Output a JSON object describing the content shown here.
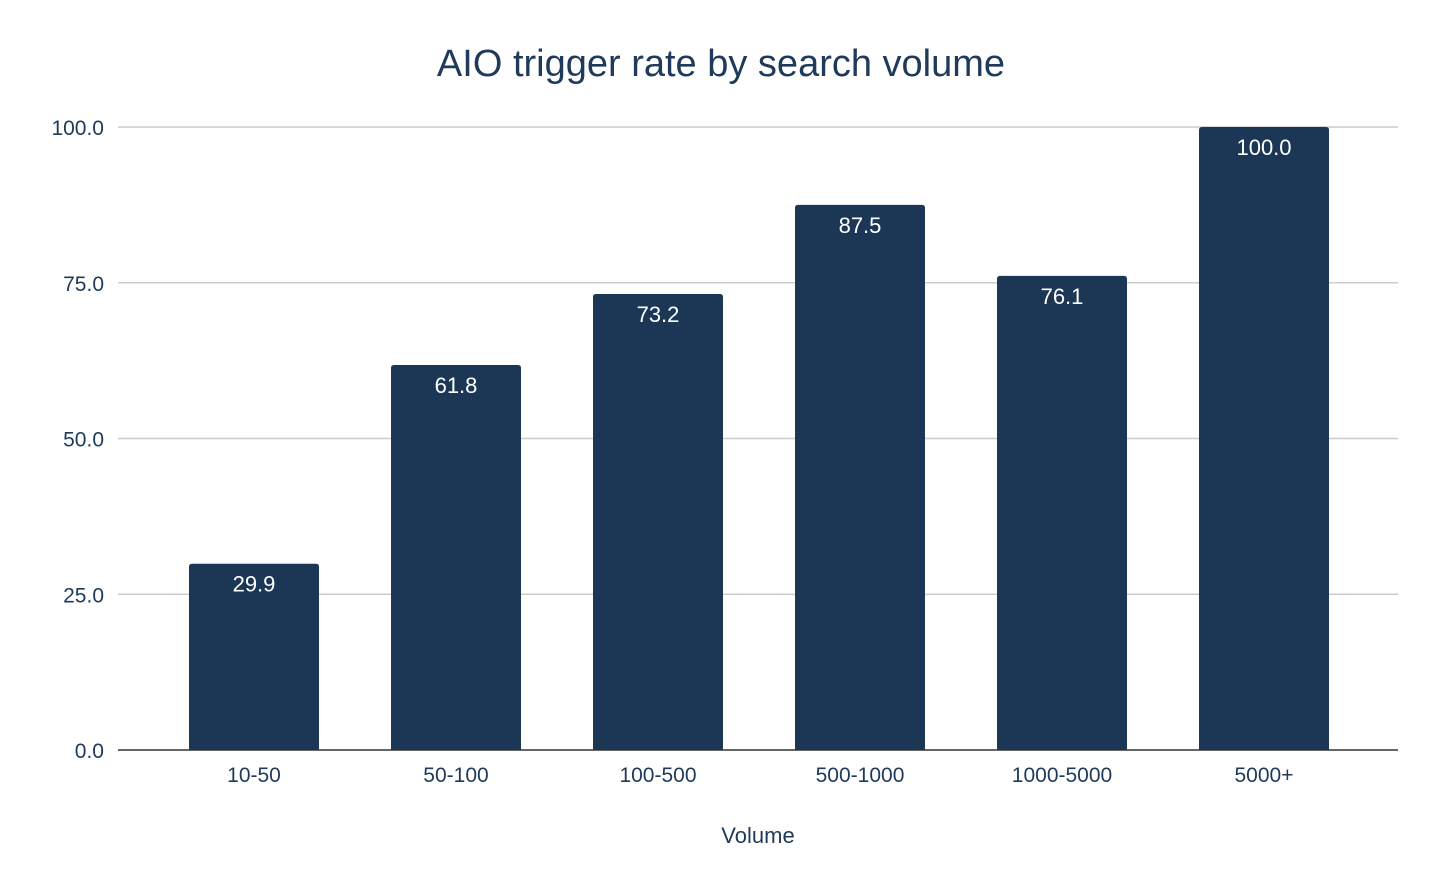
{
  "chart_data": {
    "type": "bar",
    "title": "AIO trigger rate by search volume",
    "xlabel": "Volume",
    "ylabel": "",
    "categories": [
      "10-50",
      "50-100",
      "100-500",
      "500-1000",
      "1000-5000",
      "5000+"
    ],
    "values": [
      29.9,
      61.8,
      73.2,
      87.5,
      76.1,
      100.0
    ],
    "data_labels": [
      "29.9",
      "61.8",
      "73.2",
      "87.5",
      "76.1",
      "100.0"
    ],
    "ylim": [
      0,
      100
    ],
    "yticks": [
      0,
      25,
      50,
      75,
      100
    ],
    "ytick_labels": [
      "0.0",
      "25.0",
      "50.0",
      "75.0",
      "100.0"
    ],
    "grid": true,
    "legend": "none",
    "colors": {
      "bar": "#1b3755",
      "text": "#1f3a5a",
      "grid": "#cccccc",
      "axis": "#333333"
    }
  }
}
